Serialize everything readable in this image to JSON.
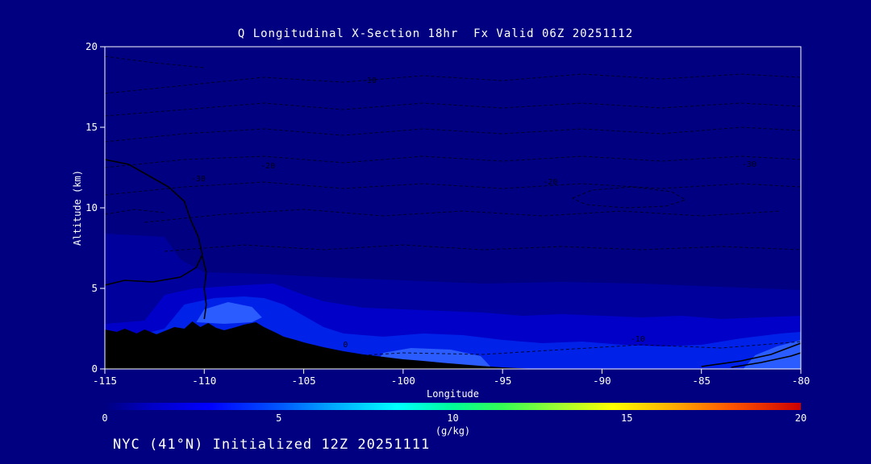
{
  "window": {
    "background": "#000080"
  },
  "footer": {
    "text": "NYC (41°N) Initialized 12Z 20251111"
  },
  "chart_data": {
    "type": "filled-contour-cross-section",
    "title": "Q Longitudinal X-Section 18hr  Fx Valid 06Z 20251112",
    "xlabel": "Longitude",
    "ylabel": "Altitude (km)",
    "xlim": [
      -115,
      -80
    ],
    "ylim": [
      0,
      20
    ],
    "xticks": [
      -115,
      -110,
      -105,
      -100,
      -95,
      -90,
      -85,
      -80
    ],
    "yticks": [
      0,
      5,
      10,
      15,
      20
    ],
    "grid": false,
    "axis_color": "#ffffff",
    "text_color": "#ffffff",
    "plot_bg": "#000080",
    "colorbar": {
      "label": "(g/kg)",
      "min": 0,
      "max": 20,
      "ticks": [
        0,
        5,
        10,
        15,
        20
      ],
      "stops": [
        {
          "pos": 0.0,
          "color": "#000080"
        },
        {
          "pos": 0.07,
          "color": "#0000c8"
        },
        {
          "pos": 0.15,
          "color": "#0000ff"
        },
        {
          "pos": 0.25,
          "color": "#0055ff"
        },
        {
          "pos": 0.33,
          "color": "#00aaff"
        },
        {
          "pos": 0.42,
          "color": "#00ffff"
        },
        {
          "pos": 0.5,
          "color": "#00ff99"
        },
        {
          "pos": 0.57,
          "color": "#33ff55"
        },
        {
          "pos": 0.65,
          "color": "#99ff33"
        },
        {
          "pos": 0.73,
          "color": "#ffff00"
        },
        {
          "pos": 0.82,
          "color": "#ffaa00"
        },
        {
          "pos": 0.9,
          "color": "#ff5500"
        },
        {
          "pos": 1.0,
          "color": "#cc0000"
        }
      ]
    },
    "fill_levels": [
      {
        "name": "q-band-1",
        "approx_gkg": 1,
        "color": "#00009c",
        "top_boundary_km": [
          [
            -115,
            8.4
          ],
          [
            -112,
            8.2
          ],
          [
            -111.2,
            6.8
          ],
          [
            -110,
            6.0
          ],
          [
            -107,
            5.9
          ],
          [
            -104,
            5.7
          ],
          [
            -100,
            5.5
          ],
          [
            -96,
            5.3
          ],
          [
            -92,
            5.4
          ],
          [
            -88,
            5.3
          ],
          [
            -84,
            5.1
          ],
          [
            -80,
            4.9
          ]
        ]
      },
      {
        "name": "q-band-2",
        "approx_gkg": 2,
        "color": "#0000c8",
        "top_boundary_km": [
          [
            -115,
            2.8
          ],
          [
            -113,
            3.0
          ],
          [
            -112,
            4.6
          ],
          [
            -110.5,
            5.0
          ],
          [
            -108,
            5.2
          ],
          [
            -106.5,
            5.3
          ],
          [
            -105,
            4.6
          ],
          [
            -104,
            4.2
          ],
          [
            -102,
            3.8
          ],
          [
            -100,
            3.7
          ],
          [
            -98,
            3.6
          ],
          [
            -96,
            3.5
          ],
          [
            -94,
            3.3
          ],
          [
            -92,
            3.4
          ],
          [
            -90,
            3.3
          ],
          [
            -88,
            3.2
          ],
          [
            -86,
            3.3
          ],
          [
            -84,
            3.1
          ],
          [
            -82,
            3.2
          ],
          [
            -80,
            3.3
          ]
        ]
      },
      {
        "name": "q-band-3",
        "approx_gkg": 3,
        "color": "#0022e8",
        "top_boundary_km": [
          [
            -115,
            1.5
          ],
          [
            -113,
            2.2
          ],
          [
            -112,
            2.5
          ],
          [
            -111,
            4.0
          ],
          [
            -109.5,
            4.4
          ],
          [
            -108,
            4.5
          ],
          [
            -107,
            4.4
          ],
          [
            -106,
            4.0
          ],
          [
            -105,
            3.3
          ],
          [
            -104,
            2.6
          ],
          [
            -103,
            2.2
          ],
          [
            -101,
            2.0
          ],
          [
            -99,
            2.2
          ],
          [
            -97,
            2.1
          ],
          [
            -95,
            1.8
          ],
          [
            -93,
            1.6
          ],
          [
            -91,
            1.7
          ],
          [
            -89,
            1.5
          ],
          [
            -87,
            1.4
          ],
          [
            -85,
            1.5
          ],
          [
            -83,
            1.9
          ],
          [
            -81,
            2.2
          ],
          [
            -80,
            2.3
          ]
        ]
      }
    ],
    "bright_patches": [
      {
        "name": "q-core-rockies",
        "approx_gkg": 4,
        "color": "#2a5cff",
        "polygon": [
          [
            -110.4,
            2.9
          ],
          [
            -110.0,
            3.7
          ],
          [
            -108.8,
            4.15
          ],
          [
            -107.6,
            3.85
          ],
          [
            -107.1,
            3.2
          ],
          [
            -107.6,
            2.9
          ],
          [
            -109,
            2.8
          ]
        ]
      },
      {
        "name": "q-core-plains",
        "approx_gkg": 4,
        "color": "#2a5cff",
        "polygon": [
          [
            -101.6,
            0
          ],
          [
            -101.0,
            1.0
          ],
          [
            -99.6,
            1.3
          ],
          [
            -97.6,
            1.2
          ],
          [
            -96.1,
            0.8
          ],
          [
            -95.5,
            0
          ]
        ]
      },
      {
        "name": "q-core-east",
        "approx_gkg": 4,
        "color": "#2a5cff",
        "polygon": [
          [
            -82.9,
            0
          ],
          [
            -82.3,
            0.85
          ],
          [
            -81.2,
            1.4
          ],
          [
            -80,
            1.8
          ],
          [
            -80,
            0
          ]
        ]
      }
    ],
    "terrain_profile_km": [
      [
        -115,
        2.45
      ],
      [
        -114.4,
        2.3
      ],
      [
        -114,
        2.5
      ],
      [
        -113.4,
        2.2
      ],
      [
        -113,
        2.45
      ],
      [
        -112.4,
        2.15
      ],
      [
        -112,
        2.35
      ],
      [
        -111.5,
        2.6
      ],
      [
        -111,
        2.5
      ],
      [
        -110.6,
        2.95
      ],
      [
        -110.2,
        2.6
      ],
      [
        -109.8,
        2.85
      ],
      [
        -109.4,
        2.55
      ],
      [
        -109,
        2.4
      ],
      [
        -108.4,
        2.6
      ],
      [
        -108,
        2.75
      ],
      [
        -107.4,
        2.9
      ],
      [
        -107,
        2.6
      ],
      [
        -106.4,
        2.25
      ],
      [
        -106,
        2.0
      ],
      [
        -105.4,
        1.8
      ],
      [
        -105,
        1.65
      ],
      [
        -104,
        1.35
      ],
      [
        -103,
        1.1
      ],
      [
        -102,
        0.9
      ],
      [
        -101,
        0.75
      ],
      [
        -100,
        0.6
      ],
      [
        -99,
        0.5
      ],
      [
        -98,
        0.38
      ],
      [
        -97,
        0.28
      ],
      [
        -96,
        0.18
      ],
      [
        -95,
        0.1
      ],
      [
        -94,
        0.04
      ],
      [
        -93.2,
        0.0
      ]
    ],
    "solid_contours": [
      {
        "points": [
          [
            -115,
            13.0
          ],
          [
            -113.8,
            12.7
          ],
          [
            -112.8,
            12.0
          ],
          [
            -111.8,
            11.3
          ],
          [
            -111.0,
            10.4
          ],
          [
            -110.7,
            9.3
          ],
          [
            -110.3,
            8.2
          ],
          [
            -110.1,
            7.1
          ],
          [
            -110.4,
            6.3
          ],
          [
            -111.2,
            5.7
          ],
          [
            -112.6,
            5.4
          ],
          [
            -114.0,
            5.5
          ],
          [
            -115,
            5.2
          ]
        ]
      },
      {
        "points": [
          [
            -110.1,
            7.0
          ],
          [
            -109.9,
            6.0
          ],
          [
            -110.0,
            5.0
          ],
          [
            -109.9,
            4.0
          ],
          [
            -110.0,
            3.1
          ]
        ]
      },
      {
        "points": [
          [
            -115,
            1.6
          ],
          [
            -114.6,
            1.4
          ],
          [
            -115,
            1.1
          ]
        ]
      },
      {
        "points": [
          [
            -85,
            0.15
          ],
          [
            -83,
            0.5
          ],
          [
            -81.5,
            0.9
          ],
          [
            -80,
            1.6
          ]
        ]
      },
      {
        "points": [
          [
            -83.5,
            0.1
          ],
          [
            -82,
            0.4
          ],
          [
            -80.5,
            0.8
          ],
          [
            -80,
            1.0
          ]
        ]
      }
    ],
    "dashed_contours": [
      {
        "points": [
          [
            -115,
            17.1
          ],
          [
            -111,
            17.6
          ],
          [
            -107,
            18.1
          ],
          [
            -103,
            17.8
          ],
          [
            -99,
            18.2
          ],
          [
            -95,
            17.9
          ],
          [
            -91,
            18.3
          ],
          [
            -87,
            18.0
          ],
          [
            -83,
            18.3
          ],
          [
            -80,
            18.1
          ]
        ]
      },
      {
        "points": [
          [
            -115,
            15.7
          ],
          [
            -111,
            16.1
          ],
          [
            -107,
            16.5
          ],
          [
            -103,
            16.1
          ],
          [
            -99,
            16.5
          ],
          [
            -95,
            16.2
          ],
          [
            -91,
            16.5
          ],
          [
            -87,
            16.2
          ],
          [
            -83,
            16.5
          ],
          [
            -80,
            16.3
          ]
        ]
      },
      {
        "points": [
          [
            -115,
            14.1
          ],
          [
            -111,
            14.6
          ],
          [
            -107,
            14.9
          ],
          [
            -103,
            14.5
          ],
          [
            -99,
            14.9
          ],
          [
            -95,
            14.6
          ],
          [
            -91,
            14.9
          ],
          [
            -87,
            14.6
          ],
          [
            -83,
            15.0
          ],
          [
            -80,
            14.8
          ]
        ]
      },
      {
        "points": [
          [
            -115,
            12.5
          ],
          [
            -111,
            13.0
          ],
          [
            -107,
            13.2
          ],
          [
            -103,
            12.8
          ],
          [
            -99,
            13.2
          ],
          [
            -95,
            12.9
          ],
          [
            -91,
            13.2
          ],
          [
            -87,
            12.9
          ],
          [
            -83,
            13.2
          ],
          [
            -80,
            13.0
          ]
        ]
      },
      {
        "points": [
          [
            -115,
            10.8
          ],
          [
            -111,
            11.3
          ],
          [
            -107,
            11.6
          ],
          [
            -103,
            11.2
          ],
          [
            -99,
            11.5
          ],
          [
            -95,
            11.2
          ],
          [
            -91,
            11.5
          ],
          [
            -87,
            11.2
          ],
          [
            -83,
            11.5
          ],
          [
            -80,
            11.3
          ]
        ]
      },
      {
        "points": [
          [
            -113,
            9.1
          ],
          [
            -109,
            9.6
          ],
          [
            -105,
            9.9
          ],
          [
            -101,
            9.5
          ],
          [
            -97,
            9.8
          ],
          [
            -93,
            9.5
          ],
          [
            -89,
            9.8
          ],
          [
            -85,
            9.5
          ],
          [
            -81,
            9.8
          ]
        ]
      },
      {
        "points": [
          [
            -112,
            7.3
          ],
          [
            -108,
            7.7
          ],
          [
            -104,
            7.4
          ],
          [
            -100,
            7.7
          ],
          [
            -96,
            7.4
          ],
          [
            -92,
            7.6
          ],
          [
            -88,
            7.4
          ],
          [
            -84,
            7.6
          ],
          [
            -80,
            7.4
          ]
        ]
      },
      {
        "points": [
          [
            -91.5,
            10.6
          ],
          [
            -90.5,
            11.1
          ],
          [
            -88.5,
            11.3
          ],
          [
            -86.5,
            11.0
          ],
          [
            -85.8,
            10.5
          ],
          [
            -86.8,
            10.1
          ],
          [
            -88.8,
            10.0
          ],
          [
            -90.8,
            10.2
          ],
          [
            -91.5,
            10.6
          ]
        ]
      },
      {
        "points": [
          [
            -104,
            0.7
          ],
          [
            -100,
            1.0
          ],
          [
            -96,
            0.9
          ],
          [
            -92,
            1.2
          ],
          [
            -88,
            1.5
          ],
          [
            -84,
            1.3
          ],
          [
            -80,
            1.7
          ]
        ]
      },
      {
        "points": [
          [
            -115,
            19.4
          ],
          [
            -112.5,
            19.0
          ],
          [
            -110,
            18.7
          ]
        ]
      },
      {
        "points": [
          [
            -115,
            9.6
          ],
          [
            -113.5,
            9.9
          ],
          [
            -112,
            9.7
          ]
        ]
      }
    ],
    "contour_labels": [
      {
        "text": "-10",
        "lon": -101.7,
        "alt": 17.9
      },
      {
        "text": "-30",
        "lon": -110.3,
        "alt": 11.8
      },
      {
        "text": "-20",
        "lon": -106.8,
        "alt": 12.6
      },
      {
        "text": "-20",
        "lon": -92.6,
        "alt": 11.6
      },
      {
        "text": "-30",
        "lon": -82.6,
        "alt": 12.7
      },
      {
        "text": "-10",
        "lon": -88.2,
        "alt": 1.85
      },
      {
        "text": "0",
        "lon": -102.9,
        "alt": 1.5
      }
    ]
  }
}
